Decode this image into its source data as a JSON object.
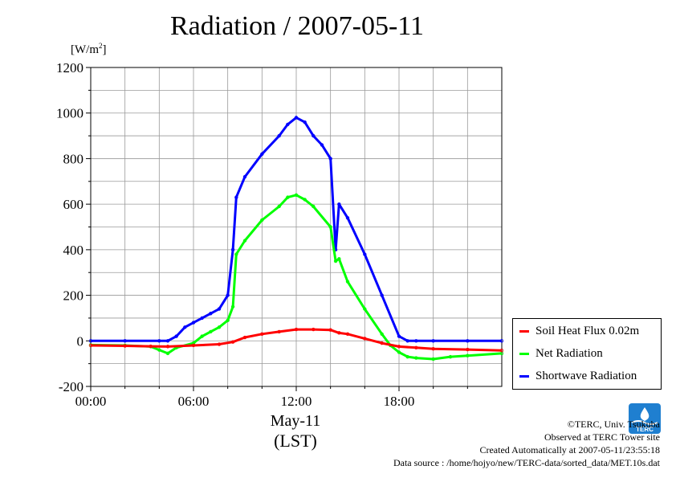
{
  "chart_data": {
    "type": "line",
    "title": "Radiation / 2007-05-11",
    "ylabel_unit": "[W/m",
    "ylabel_unit_sup": "2",
    "ylabel_unit_close": "]",
    "x_date_label": "May-11",
    "x_unit_label": "(LST)",
    "x_range_hours": [
      0,
      24
    ],
    "ylim": [
      -200,
      1200
    ],
    "y_ticks": [
      "-200",
      "0",
      "200",
      "400",
      "600",
      "800",
      "1000",
      "1200"
    ],
    "x_ticks": [
      "00:00",
      "06:00",
      "12:00",
      "18:00"
    ],
    "grid": true,
    "legend_position": "bottom-right",
    "series": [
      {
        "name": "Soil Heat Flux 0.02m",
        "color": "#ff0000",
        "x": [
          0,
          2,
          3.5,
          4.5,
          6,
          7.5,
          8.3,
          9,
          10,
          11,
          12,
          13,
          14,
          14.5,
          15,
          16,
          17,
          18,
          19,
          20,
          22,
          24
        ],
        "y": [
          -20,
          -22,
          -24,
          -25,
          -20,
          -15,
          -5,
          15,
          30,
          40,
          50,
          50,
          48,
          35,
          30,
          10,
          -10,
          -25,
          -30,
          -35,
          -38,
          -42
        ]
      },
      {
        "name": "Net Radiation",
        "color": "#00ff00",
        "x": [
          0,
          2,
          3.5,
          4,
          4.5,
          5,
          6,
          6.5,
          7,
          7.5,
          8,
          8.3,
          8.5,
          9,
          10,
          11,
          11.5,
          12,
          12.5,
          13,
          14,
          14.3,
          14.5,
          15,
          16,
          17,
          17.5,
          18,
          18.5,
          19,
          20,
          21,
          22,
          24
        ],
        "y": [
          -18,
          -20,
          -25,
          -40,
          -55,
          -30,
          -10,
          20,
          40,
          60,
          90,
          150,
          380,
          440,
          530,
          590,
          630,
          640,
          620,
          590,
          500,
          350,
          360,
          260,
          140,
          30,
          -20,
          -50,
          -70,
          -75,
          -80,
          -70,
          -65,
          -55
        ]
      },
      {
        "name": "Shortwave Radiation",
        "color": "#0000ff",
        "x": [
          0,
          2,
          4,
          4.5,
          5,
          5.5,
          6,
          6.5,
          7,
          7.5,
          8,
          8.3,
          8.5,
          9,
          10,
          11,
          11.5,
          12,
          12.5,
          13,
          13.5,
          14,
          14.3,
          14.5,
          15,
          16,
          17,
          18,
          18.5,
          19,
          20,
          22,
          24
        ],
        "y": [
          0,
          0,
          0,
          0,
          20,
          60,
          80,
          100,
          120,
          140,
          200,
          400,
          630,
          720,
          820,
          900,
          950,
          980,
          960,
          900,
          860,
          800,
          400,
          600,
          540,
          380,
          200,
          20,
          0,
          0,
          0,
          0,
          0
        ]
      }
    ]
  },
  "credits": {
    "line1": "©TERC, Univ. Tsukuba",
    "line2": "Observed at TERC Tower site",
    "line3": "Created Automatically at 2007-05-11/23:55:18",
    "line4": "Data source : /home/hojyo/new/TERC-data/sorted_data/MET.10s.dat"
  },
  "logo": {
    "text": "TERC",
    "color": "#1f7fd0"
  }
}
